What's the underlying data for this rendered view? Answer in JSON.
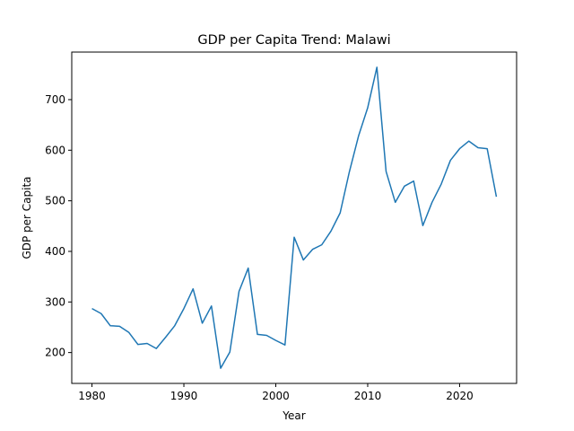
{
  "chart_data": {
    "type": "line",
    "title": "GDP per Capita Trend: Malawi",
    "xlabel": "Year",
    "ylabel": "GDP per Capita",
    "xlim": [
      1977.8,
      2026.2
    ],
    "ylim": [
      139,
      794
    ],
    "xticks": [
      1980,
      1990,
      2000,
      2010,
      2020
    ],
    "yticks": [
      200,
      300,
      400,
      500,
      600,
      700
    ],
    "grid": false,
    "legend": "none",
    "line_color": "#1f77b4",
    "series": [
      {
        "x": [
          1980,
          1981,
          1982,
          1983,
          1984,
          1985,
          1986,
          1987,
          1988,
          1989,
          1990,
          1991,
          1992,
          1993,
          1994,
          1995,
          1996,
          1997,
          1998,
          1999,
          2000,
          2001,
          2002,
          2003,
          2004,
          2005,
          2006,
          2007,
          2008,
          2009,
          2010,
          2011,
          2012,
          2013,
          2014,
          2015,
          2016,
          2017,
          2018,
          2019,
          2020,
          2021,
          2022,
          2023,
          2024
        ],
        "values": [
          287,
          277,
          253,
          252,
          240,
          216,
          218,
          208,
          230,
          253,
          287,
          326,
          258,
          292,
          169,
          201,
          321,
          367,
          236,
          234,
          224,
          215,
          428,
          383,
          404,
          413,
          440,
          476,
          557,
          628,
          684,
          764,
          558,
          497,
          529,
          539,
          451,
          497,
          533,
          580,
          603,
          618,
          605,
          603,
          508
        ]
      }
    ]
  }
}
